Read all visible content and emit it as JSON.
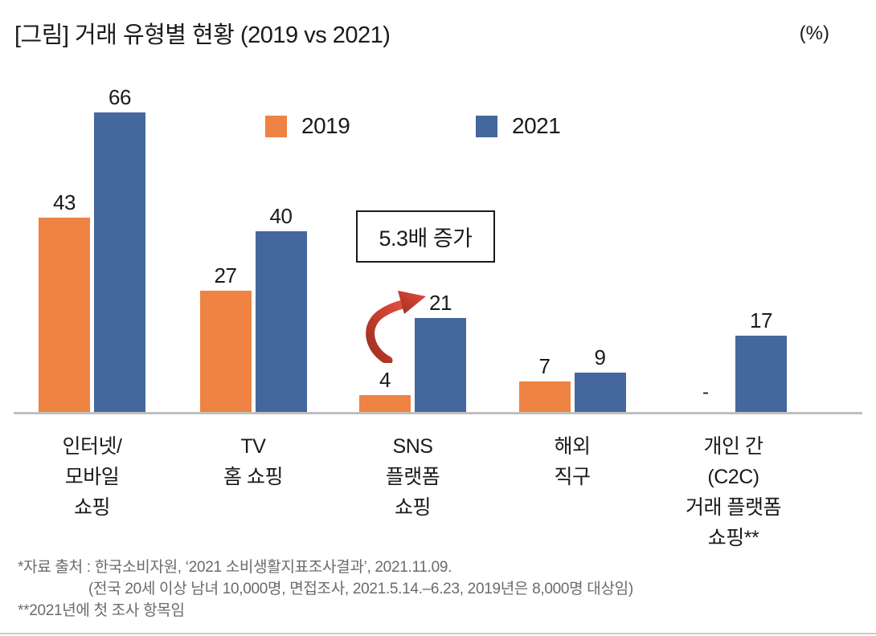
{
  "header": {
    "title": "[그림] 거래 유형별 현황 (2019 vs 2021)",
    "unit_label": "(%)"
  },
  "legend": {
    "items": [
      {
        "label": "2019",
        "color": "#EF8343"
      },
      {
        "label": "2021",
        "color": "#44679E"
      }
    ]
  },
  "annotation": {
    "text": "5.3배 증가",
    "arrow_icon": "curved-red-arrow",
    "arrow_colors": {
      "dark": "#9e2f22",
      "mid": "#c43d2d",
      "bright": "#e05140"
    }
  },
  "chart_data": {
    "type": "bar",
    "title": "[그림] 거래 유형별 현황 (2019 vs 2021)",
    "unit": "%",
    "categories": [
      "인터넷/\n모바일\n쇼핑",
      "TV\n홈 쇼핑",
      "SNS\n플랫폼\n쇼핑",
      "해외\n직구",
      "개인 간\n(C2C)\n거래 플랫폼\n쇼핑**"
    ],
    "series": [
      {
        "name": "2019",
        "color": "#EF8343",
        "values": [
          43,
          27,
          4,
          7,
          null
        ]
      },
      {
        "name": "2021",
        "color": "#44679E",
        "values": [
          66,
          40,
          21,
          9,
          17
        ]
      }
    ],
    "missing_value_label": "-",
    "ylim": [
      0,
      70
    ],
    "grid": false,
    "legend_position": "top-center",
    "annotation": {
      "text": "5.3배 증가",
      "target": "SNS 플랫폼 쇼핑 2021"
    }
  },
  "footnotes": {
    "lines": [
      "*자료 출처 : 한국소비자원, ‘2021 소비생활지표조사결과’, 2021.11.09.",
      "(전국 20세 이상 남녀 10,000명, 면접조사, 2021.5.14.–6.23, 2019년은 8,000명 대상임)",
      "**2021년에 첫 조사 항목임"
    ]
  }
}
